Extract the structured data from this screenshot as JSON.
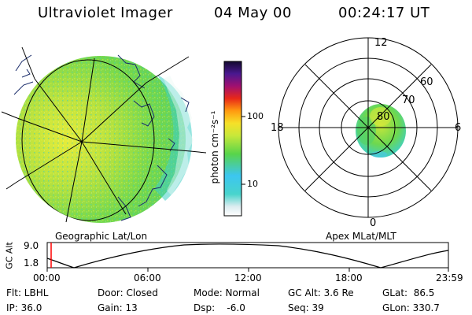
{
  "header": {
    "instrument": "Ultraviolet Imager",
    "date": "04 May 00",
    "time": "00:24:17 UT"
  },
  "geo_panel": {
    "caption": "Geographic Lat/Lon"
  },
  "colorbar": {
    "unit_label": "photon cm⁻²s⁻¹",
    "ticks": [
      "100",
      "10"
    ],
    "scale": "log"
  },
  "polar_panel": {
    "caption": "Apex MLat/MLT",
    "mlt_labels": {
      "top": "12",
      "left": "18",
      "right": "6",
      "bottom": "0"
    },
    "mlat_labels": [
      "60",
      "70",
      "80"
    ]
  },
  "altitude_plot": {
    "ylabel": "GC Alt",
    "yticks": [
      "9.0",
      "1.8"
    ],
    "xticks": [
      "00:00",
      "06:00",
      "12:00",
      "18:00",
      "23:59"
    ],
    "current_time_marker_color": "#ff0000"
  },
  "info": {
    "filter": "Flt: LBHL",
    "ip": "IP: 36.0",
    "door": "Door: Closed",
    "gain": "Gain: 13",
    "mode": "Mode: Normal",
    "dsp": "Dsp:    -6.0",
    "gc_alt": "GC Alt: 3.6 Re",
    "seq": "Seq: 39",
    "glat": "GLat:  86.5",
    "glon": "GLon: 330.7"
  },
  "colors": {
    "image_green": "#6ad84e",
    "image_yellow": "#e4ea3c",
    "image_cyan": "#4ad2c0",
    "land_outline": "#1a2c6a"
  }
}
